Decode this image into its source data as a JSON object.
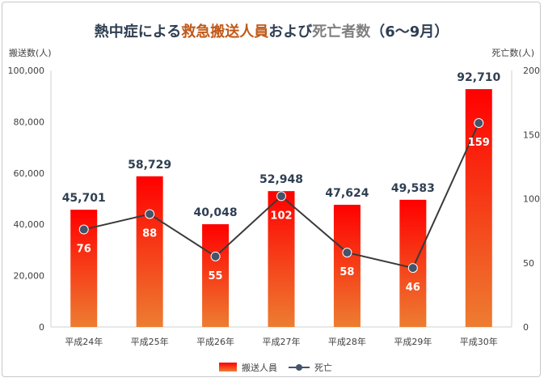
{
  "chart_data": {
    "type": "bar+line",
    "title_parts": [
      {
        "text": "熱中症による",
        "color": "#2f3f52"
      },
      {
        "text": "救急搬送人員",
        "color": "#c05a1a"
      },
      {
        "text": "および",
        "color": "#2f3f52"
      },
      {
        "text": "死亡者数",
        "color": "#7f7f7f"
      },
      {
        "text": "（6～9月）",
        "color": "#2f3f52"
      }
    ],
    "categories": [
      "平成24年",
      "平成25年",
      "平成26年",
      "平成27年",
      "平成28年",
      "平成29年",
      "平成30年"
    ],
    "series": [
      {
        "name": "搬送人員",
        "type": "bar",
        "axis": "left",
        "values": [
          45701,
          58729,
          40048,
          52948,
          47624,
          49583,
          92710
        ],
        "labels": [
          "45,701",
          "58,729",
          "40,048",
          "52,948",
          "47,624",
          "49,583",
          "92,710"
        ],
        "color_top": "#ff0000",
        "color_bottom": "#ed7d31"
      },
      {
        "name": "死亡",
        "type": "line",
        "axis": "right",
        "values": [
          76,
          88,
          55,
          102,
          58,
          46,
          159
        ],
        "color": "#44546a"
      }
    ],
    "y_left": {
      "label": "搬送数(人)",
      "range": [
        0,
        100000
      ],
      "ticks": [
        "0",
        "20,000",
        "40,000",
        "60,000",
        "80,000",
        "100,000"
      ]
    },
    "y_right": {
      "label": "死亡数(人)",
      "range": [
        0,
        200
      ],
      "ticks": [
        "0",
        "50",
        "100",
        "150",
        "200"
      ]
    },
    "legend": {
      "position": "bottom",
      "items": [
        "搬送人員",
        "死亡"
      ]
    },
    "grid": false
  }
}
